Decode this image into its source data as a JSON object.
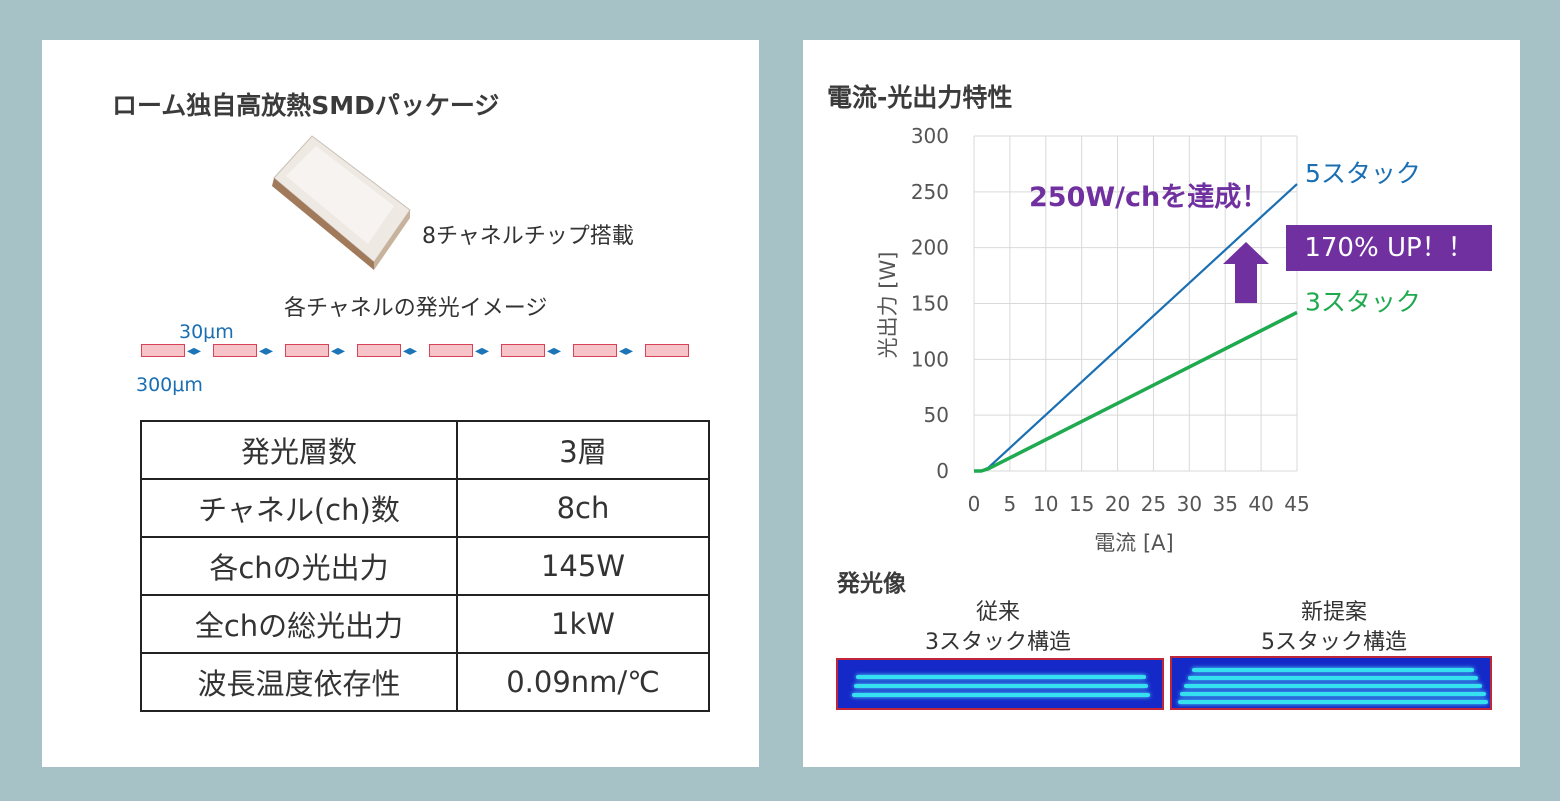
{
  "left": {
    "title": "ローム独自高放熱SMDパッケージ",
    "chip_caption": "8チャネルチップ搭載",
    "channel_caption": "各チャネルの発光イメージ",
    "gap_label": "30μm",
    "width_label": "300μm",
    "spec_table": [
      {
        "key": "発光層数",
        "value": "3層"
      },
      {
        "key": "チャネル(ch)数",
        "value": "8ch"
      },
      {
        "key": "各chの光出力",
        "value": "145W"
      },
      {
        "key": "全chの総光出力",
        "value": "1kW"
      },
      {
        "key": "波長温度依存性",
        "value": "0.09nm/℃"
      }
    ]
  },
  "right": {
    "title": "電流-光出力特性",
    "emission_title": "発光像",
    "conventional_label_1": "従来",
    "conventional_label_2": "3スタック構造",
    "new_label_1": "新提案",
    "new_label_2": "5スタック構造",
    "badge": "170% UP！！",
    "annotation": "250W/chを達成！"
  },
  "chart_data": {
    "type": "line",
    "title": "電流-光出力特性",
    "xlabel": "電流 [A]",
    "ylabel": "光出力 [W]",
    "xlim": [
      0,
      45
    ],
    "ylim": [
      0,
      300
    ],
    "xticks": [
      0,
      5,
      10,
      15,
      20,
      25,
      30,
      35,
      40,
      45
    ],
    "yticks": [
      0,
      50,
      100,
      150,
      200,
      250,
      300
    ],
    "grid": true,
    "series": [
      {
        "name": "5スタック",
        "color": "#1a6fb3",
        "x": [
          0,
          1,
          2,
          45
        ],
        "y": [
          0,
          0,
          3,
          257
        ]
      },
      {
        "name": "3スタック",
        "color": "#1faa4f",
        "x": [
          0,
          1,
          2,
          45
        ],
        "y": [
          0,
          0,
          2,
          142
        ]
      }
    ]
  }
}
